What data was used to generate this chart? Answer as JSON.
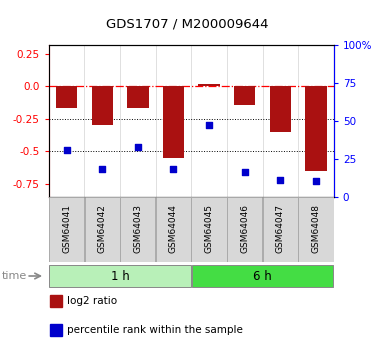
{
  "title": "GDS1707 / M200009644",
  "samples": [
    "GSM64041",
    "GSM64042",
    "GSM64043",
    "GSM64044",
    "GSM64045",
    "GSM64046",
    "GSM64047",
    "GSM64048"
  ],
  "log2_ratio": [
    -0.17,
    -0.3,
    -0.17,
    -0.55,
    0.02,
    -0.14,
    -0.35,
    -0.65
  ],
  "percentile_rank": [
    31,
    18,
    33,
    18,
    47,
    16,
    11,
    10
  ],
  "groups": [
    {
      "label": "1 h",
      "count": 4,
      "color": "#b8f0b8"
    },
    {
      "label": "6 h",
      "count": 4,
      "color": "#44dd44"
    }
  ],
  "bar_color": "#aa1111",
  "dot_color": "#0000cc",
  "ylim_left": [
    -0.85,
    0.32
  ],
  "ylim_right": [
    0,
    100
  ],
  "yticks_left": [
    0.25,
    0.0,
    -0.25,
    -0.5,
    -0.75
  ],
  "yticks_right": [
    100,
    75,
    50,
    25,
    0
  ],
  "bar_width": 0.6,
  "legend_items": [
    "log2 ratio",
    "percentile rank within the sample"
  ]
}
